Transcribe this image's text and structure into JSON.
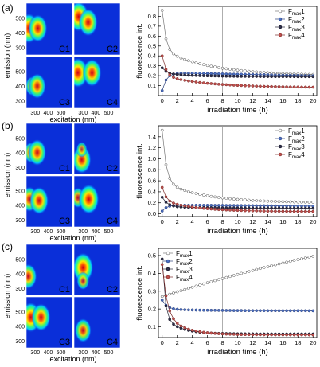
{
  "panels": [
    {
      "label": "(a)",
      "maps": [
        {
          "name": "C1",
          "spots": [
            {
              "ex": 250,
              "em": 430,
              "r": 1.0
            },
            {
              "ex": 320,
              "em": 430,
              "r": 0.9
            }
          ]
        },
        {
          "name": "C2",
          "spots": [
            {
              "ex": 265,
              "em": 510,
              "r": 1.0
            },
            {
              "ex": 340,
              "em": 470,
              "r": 0.9
            }
          ]
        },
        {
          "name": "C3",
          "spots": [
            {
              "ex": 275,
              "em": 400,
              "r": 0.55
            },
            {
              "ex": 315,
              "em": 400,
              "r": 0.8
            }
          ]
        },
        {
          "name": "C4",
          "spots": [
            {
              "ex": 260,
              "em": 490,
              "r": 1.0
            },
            {
              "ex": 370,
              "em": 490,
              "r": 0.9
            }
          ]
        }
      ]
    },
    {
      "label": "(b)",
      "maps": [
        {
          "name": "C1",
          "spots": [
            {
              "ex": 265,
              "em": 400,
              "r": 0.6
            },
            {
              "ex": 315,
              "em": 400,
              "r": 0.85
            }
          ]
        },
        {
          "name": "C2",
          "spots": [
            {
              "ex": 290,
              "em": 350,
              "r": 0.9
            },
            {
              "ex": 290,
              "em": 420,
              "r": 0.4
            }
          ]
        },
        {
          "name": "C3",
          "spots": [
            {
              "ex": 255,
              "em": 440,
              "r": 0.8
            },
            {
              "ex": 330,
              "em": 430,
              "r": 0.9
            }
          ]
        },
        {
          "name": "C4",
          "spots": [
            {
              "ex": 260,
              "em": 450,
              "r": 0.6
            },
            {
              "ex": 345,
              "em": 440,
              "r": 1.0
            }
          ]
        }
      ]
    },
    {
      "label": "(c)",
      "maps": [
        {
          "name": "C1",
          "spots": [
            {
              "ex": 245,
              "em": 380,
              "r": 0.8
            }
          ]
        },
        {
          "name": "C2",
          "spots": [
            {
              "ex": 300,
              "em": 440,
              "r": 1.0
            },
            {
              "ex": 300,
              "em": 350,
              "r": 0.5
            }
          ]
        },
        {
          "name": "C3",
          "spots": [
            {
              "ex": 265,
              "em": 460,
              "r": 1.0
            },
            {
              "ex": 345,
              "em": 460,
              "r": 0.9
            }
          ]
        },
        {
          "name": "C4",
          "spots": [
            {
              "ex": 300,
              "em": 370,
              "r": 0.75
            }
          ]
        }
      ]
    }
  ],
  "eem": {
    "ylabel": "emission (nm)",
    "xlabel": "excitation (nm)",
    "yticks": [
      "500",
      "400",
      "300"
    ],
    "xticks": [
      "300",
      "400",
      "500"
    ]
  },
  "chart_data": [
    {
      "type": "line",
      "panel": "(a)",
      "xlabel": "irradiation time (h)",
      "ylabel": "fluorescence int.",
      "xlim": [
        -0.5,
        20.5
      ],
      "ylim": [
        0,
        0.9
      ],
      "xticks": [
        0,
        2,
        4,
        6,
        8,
        10,
        12,
        14,
        16,
        18,
        20
      ],
      "yticks": [
        0.1,
        0.2,
        0.3,
        0.4,
        0.5,
        0.6,
        0.7,
        0.8
      ],
      "vline": 8,
      "legend_position": "top-right",
      "series": [
        {
          "name": "Fmax1",
          "base": "F",
          "sub": "max",
          "suffix": "1",
          "style": "open",
          "y0": 0.86,
          "yInf": 0.2,
          "amp2": 0.26,
          "tau1": 0.45,
          "tau2": 6.5
        },
        {
          "name": "Fmax2",
          "base": "F",
          "sub": "max",
          "suffix": "2",
          "style": "blue",
          "y0": 0.05,
          "yInf": 0.23,
          "amp2": 0.0,
          "tau1": 0.55,
          "tau2": 10,
          "drift": -0.0015
        },
        {
          "name": "Fmax3",
          "base": "F",
          "sub": "max",
          "suffix": "3",
          "style": "dark",
          "y0": 0.28,
          "yInf": 0.19,
          "amp2": 0.03,
          "tau1": 0.6,
          "tau2": 5
        },
        {
          "name": "Fmax4",
          "base": "F",
          "sub": "max",
          "suffix": "4",
          "style": "red",
          "y0": 0.4,
          "yInf": 0.08,
          "amp2": 0.12,
          "tau1": 0.5,
          "tau2": 6
        }
      ]
    },
    {
      "type": "line",
      "panel": "(b)",
      "xlabel": "irradiation time (h)",
      "ylabel": "fluorescence int.",
      "xlim": [
        -0.5,
        20.5
      ],
      "ylim": [
        -0.05,
        1.6
      ],
      "xticks": [
        0,
        2,
        4,
        6,
        8,
        10,
        12,
        14,
        16,
        18,
        20
      ],
      "yticks": [
        0.0,
        0.2,
        0.4,
        0.6,
        0.8,
        1.0,
        1.2,
        1.4
      ],
      "vline": 8,
      "legend_position": "top-right",
      "series": [
        {
          "name": "Fmax1",
          "base": "F",
          "sub": "max",
          "suffix": "1",
          "style": "open",
          "y0": 1.52,
          "yInf": 0.2,
          "amp2": 0.38,
          "tau1": 0.5,
          "tau2": 5.5
        },
        {
          "name": "Fmax2",
          "base": "F",
          "sub": "max",
          "suffix": "2",
          "style": "blue",
          "y0": 0.05,
          "yInf": 0.16,
          "amp2": 0.0,
          "tau1": 0.6,
          "tau2": 10,
          "drift": -0.001
        },
        {
          "name": "Fmax3",
          "base": "F",
          "sub": "max",
          "suffix": "3",
          "style": "dark",
          "y0": 0.3,
          "yInf": 0.1,
          "amp2": 0.03,
          "tau1": 0.7,
          "tau2": 5
        },
        {
          "name": "Fmax4",
          "base": "F",
          "sub": "max",
          "suffix": "4",
          "style": "red",
          "y0": 0.48,
          "yInf": 0.04,
          "amp2": 0.2,
          "tau1": 0.5,
          "tau2": 4.5
        }
      ]
    },
    {
      "type": "line",
      "panel": "(c)",
      "xlabel": "irradiation time (h)",
      "ylabel": "fluorescence int.",
      "xlim": [
        -0.5,
        20.5
      ],
      "ylim": [
        0.04,
        0.54
      ],
      "xticks": [
        0,
        2,
        4,
        6,
        8,
        10,
        12,
        14,
        16,
        18,
        20
      ],
      "yticks": [
        0.1,
        0.2,
        0.3,
        0.4,
        0.5
      ],
      "vline": 8,
      "legend_position": "top-left",
      "series": [
        {
          "name": "Fmax1",
          "base": "F",
          "sub": "max",
          "suffix": "1",
          "style": "open",
          "rise": true,
          "y0": 0.27,
          "slope": 0.0135,
          "curve": -0.00011
        },
        {
          "name": "Fmax2",
          "base": "F",
          "sub": "max",
          "suffix": "2",
          "style": "blue",
          "y0": 0.25,
          "yInf": 0.19,
          "amp2": 0.01,
          "tau1": 0.6,
          "tau2": 5
        },
        {
          "name": "Fmax3",
          "base": "F",
          "sub": "max",
          "suffix": "3",
          "style": "dark",
          "y0": 0.48,
          "yInf": 0.06,
          "amp2": 0.1,
          "tau1": 0.35,
          "tau2": 2.2
        },
        {
          "name": "Fmax4",
          "base": "F",
          "sub": "max",
          "suffix": "4",
          "style": "red",
          "y0": 0.45,
          "yInf": 0.055,
          "amp2": 0.12,
          "tau1": 0.6,
          "tau2": 2.6
        }
      ]
    }
  ],
  "colors": {
    "eem_bg": "#0a2fd9",
    "open_fill": "#ffffff",
    "open_stroke": "#555555",
    "blue": "#4a6fc2",
    "dark": "#2f2f4a",
    "red": "#c0504d",
    "vline": "#9a9a9a"
  }
}
